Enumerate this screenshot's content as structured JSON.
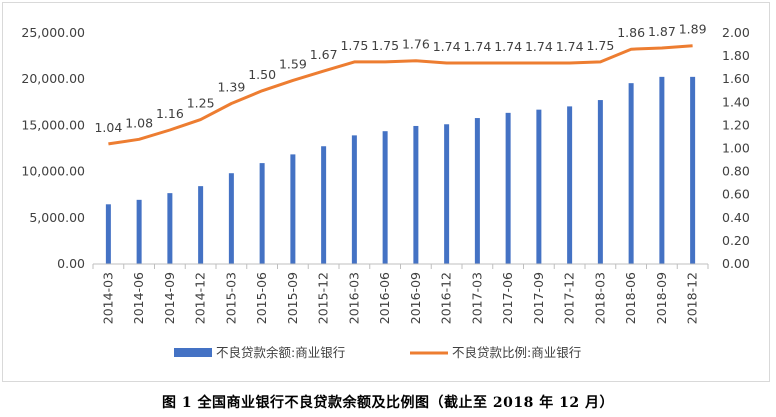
{
  "caption": "图 1 全国商业银行不良贷款余额及比例图（截止至 2018 年 12 月）",
  "chart_data": {
    "type": "bar",
    "categories": [
      "2014-03",
      "2014-06",
      "2014-09",
      "2014-12",
      "2015-03",
      "2015-06",
      "2015-09",
      "2015-12",
      "2016-03",
      "2016-06",
      "2016-09",
      "2016-12",
      "2017-03",
      "2017-06",
      "2017-09",
      "2017-12",
      "2018-03",
      "2018-06",
      "2018-09",
      "2018-12"
    ],
    "series": [
      {
        "name": "不良贷款余额:商业银行",
        "kind": "bar",
        "axis": "left",
        "color": "#4472c4",
        "values": [
          6461,
          6944,
          7669,
          8426,
          9825,
          10919,
          11863,
          12744,
          13921,
          14373,
          14939,
          15123,
          15795,
          16358,
          16704,
          17057,
          17742,
          19571,
          20254,
          20254
        ]
      },
      {
        "name": "不良贷款比例:商业银行",
        "kind": "line",
        "axis": "right",
        "color": "#ed7d31",
        "values": [
          1.04,
          1.08,
          1.16,
          1.25,
          1.39,
          1.5,
          1.59,
          1.67,
          1.75,
          1.75,
          1.76,
          1.74,
          1.74,
          1.74,
          1.74,
          1.74,
          1.75,
          1.86,
          1.87,
          1.89
        ],
        "labels": [
          "1.04",
          "1.08",
          "1.16",
          "1.25",
          "1.39",
          "1.50",
          "1.59",
          "1.67",
          "1.75",
          "1.75",
          "1.76",
          "1.74",
          "1.74",
          "1.74",
          "1.74",
          "1.74",
          "1.75",
          "1.86",
          "1.87",
          "1.89"
        ]
      }
    ],
    "y_left": {
      "min": 0,
      "max": 25000,
      "ticks": [
        "0.00",
        "5,000.00",
        "10,000.00",
        "15,000.00",
        "20,000.00",
        "25,000.00"
      ]
    },
    "y_right": {
      "min": 0,
      "max": 2.0,
      "ticks": [
        "0.00",
        "0.20",
        "0.40",
        "0.60",
        "0.80",
        "1.00",
        "1.20",
        "1.40",
        "1.60",
        "1.80",
        "2.00"
      ]
    },
    "legend": [
      "不良贷款余额:商业银行",
      "不良贷款比例:商业银行"
    ],
    "legend_position": "bottom",
    "grid": false
  }
}
